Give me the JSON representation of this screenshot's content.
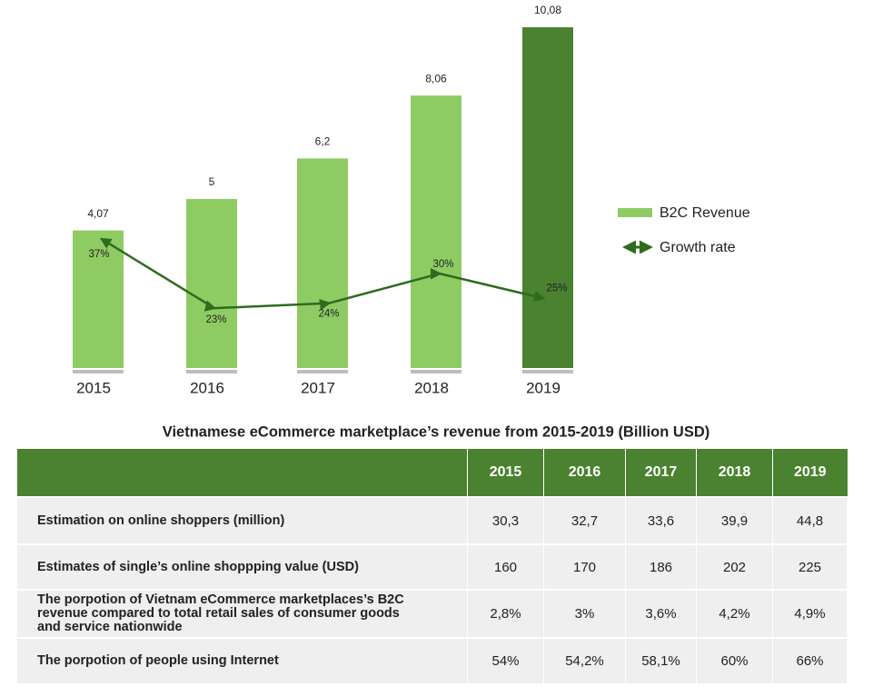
{
  "chart_data": {
    "type": "bar",
    "title": "Vietnamese eCommerce marketplace’s revenue from 2015-2019 (Billion USD)",
    "categories": [
      "2015",
      "2016",
      "2017",
      "2018",
      "2019"
    ],
    "series": [
      {
        "name": "B2C Revenue",
        "type": "bar",
        "colors": [
          "#8fcb63",
          "#8fcb63",
          "#8fcb63",
          "#8fcb63",
          "#4a8230"
        ],
        "color": "#8fcb63",
        "values": [
          4.07,
          5,
          6.2,
          8.06,
          10.08
        ],
        "value_labels": [
          "4,07",
          "5",
          "6,2",
          "8,06",
          "10,08"
        ]
      },
      {
        "name": "Growth rate",
        "type": "line",
        "axis": "y2",
        "color": "#2f6b1f",
        "values": [
          37,
          23,
          24,
          30,
          25
        ],
        "value_labels": [
          "37%",
          "23%",
          "24%",
          "30%",
          "25%"
        ]
      }
    ]
  },
  "table": {
    "columns": [
      "2015",
      "2016",
      "2017",
      "2018",
      "2019"
    ],
    "rows": [
      {
        "label": "Estimation on online shoppers (million)",
        "cells": [
          "30,3",
          "32,7",
          "33,6",
          "39,9",
          "44,8"
        ]
      },
      {
        "label": "Estimates of single’s online shoppping value (USD)",
        "cells": [
          "160",
          "170",
          "186",
          "202",
          "225"
        ]
      },
      {
        "label": "The porpotion of Vietnam eCommerce marketplaces’s B2C revenue compared to total retail sales of consumer goods and service nationwide",
        "cells": [
          "2,8%",
          "3%",
          "3,6%",
          "4,2%",
          "4,9%"
        ]
      },
      {
        "label": "The porpotion of people using Internet",
        "cells": [
          "54%",
          "54,2%",
          "58,1%",
          "60%",
          "66%"
        ]
      }
    ]
  }
}
